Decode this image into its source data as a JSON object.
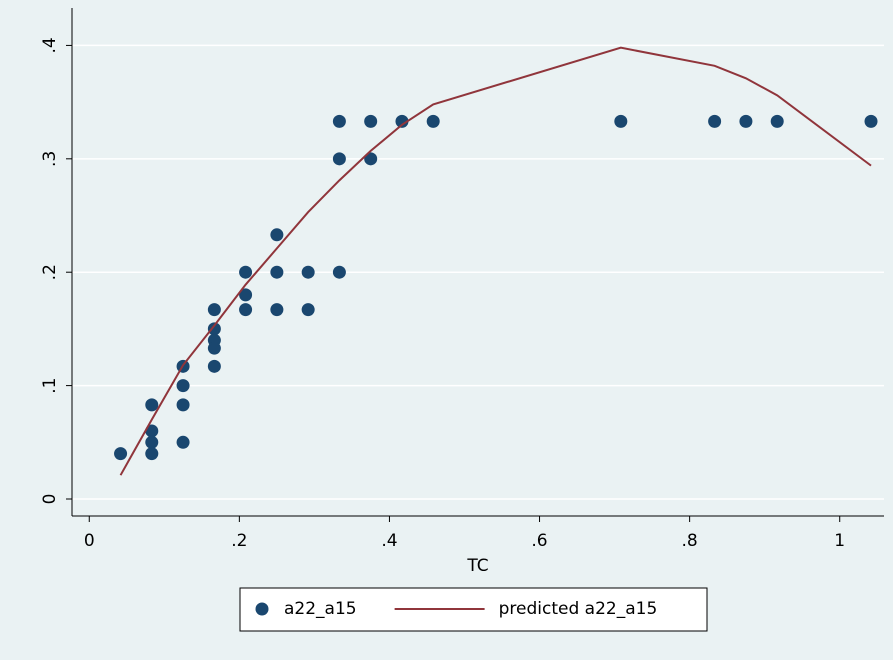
{
  "chart_data": {
    "type": "scatter",
    "xlabel": "TC",
    "xlim": [
      -0.023,
      1.059
    ],
    "ylim": [
      -0.015,
      0.433
    ],
    "xticks": [
      0,
      {
        "value": 0.2,
        "label": ".2"
      },
      {
        "value": 0.4,
        "label": ".4"
      },
      {
        "value": 0.6,
        "label": ".6"
      },
      {
        "value": 0.8,
        "label": ".8"
      },
      1
    ],
    "yticks": [
      0,
      {
        "value": 0.1,
        "label": ".1"
      },
      {
        "value": 0.2,
        "label": ".2"
      },
      {
        "value": 0.3,
        "label": ".3"
      },
      {
        "value": 0.4,
        "label": ".4"
      }
    ],
    "grid": true,
    "legend": "bottom",
    "series": [
      {
        "name": "a22_a15",
        "type": "scatter",
        "color": "#1a476f",
        "x": [
          0.0417,
          0.0833,
          0.0833,
          0.0833,
          0.0833,
          0.125,
          0.125,
          0.125,
          0.125,
          0.1667,
          0.1667,
          0.1667,
          0.1667,
          0.1667,
          0.2083,
          0.2083,
          0.2083,
          0.25,
          0.25,
          0.25,
          0.2917,
          0.2917,
          0.3333,
          0.3333,
          0.3333,
          0.375,
          0.375,
          0.4167,
          0.4583,
          0.7083,
          0.8333,
          0.875,
          0.9167,
          1.0417
        ],
        "values": [
          0.04,
          0.083,
          0.06,
          0.05,
          0.04,
          0.117,
          0.1,
          0.083,
          0.05,
          0.167,
          0.15,
          0.14,
          0.133,
          0.117,
          0.2,
          0.18,
          0.167,
          0.233,
          0.2,
          0.167,
          0.2,
          0.167,
          0.333,
          0.3,
          0.2,
          0.333,
          0.3,
          0.333,
          0.333,
          0.333,
          0.333,
          0.333,
          0.333,
          0.333
        ]
      },
      {
        "name": "predicted a22_a15",
        "type": "line",
        "color": "#90353b",
        "x": [
          0.0417,
          0.0833,
          0.125,
          0.1667,
          0.2083,
          0.25,
          0.2917,
          0.3333,
          0.375,
          0.4167,
          0.4583,
          0.7083,
          0.8333,
          0.875,
          0.9167,
          1.0417
        ],
        "values": [
          0.021,
          0.07,
          0.118,
          0.153,
          0.189,
          0.221,
          0.253,
          0.281,
          0.307,
          0.33,
          0.348,
          0.398,
          0.382,
          0.371,
          0.356,
          0.294
        ]
      }
    ]
  }
}
